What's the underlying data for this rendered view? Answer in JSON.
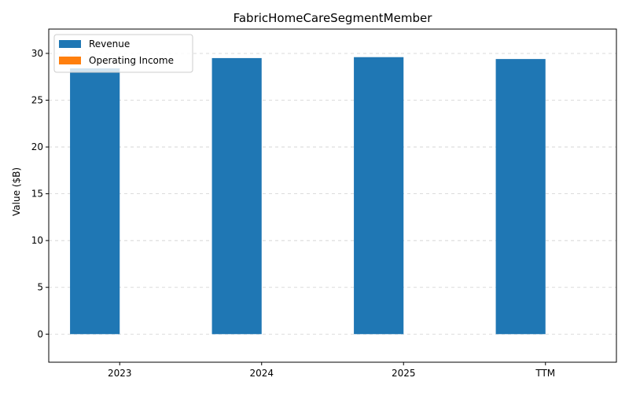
{
  "chart_data": {
    "type": "bar",
    "title": "FabricHomeCareSegmentMember",
    "xlabel": "",
    "ylabel": "Value ($B)",
    "categories": [
      "2023",
      "2024",
      "2025",
      "TTM"
    ],
    "series": [
      {
        "name": "Revenue",
        "color": "#1f77b4",
        "values": [
          28.4,
          29.5,
          29.6,
          29.4
        ]
      },
      {
        "name": "Operating Income",
        "color": "#ff7f0e",
        "values": [
          0,
          0,
          0,
          0
        ]
      }
    ],
    "ylim": [
      -3,
      32.6
    ],
    "yticks": [
      0,
      5,
      10,
      15,
      20,
      25,
      30
    ],
    "grid": true,
    "grid_axis": "y",
    "legend_position": "top-left"
  }
}
